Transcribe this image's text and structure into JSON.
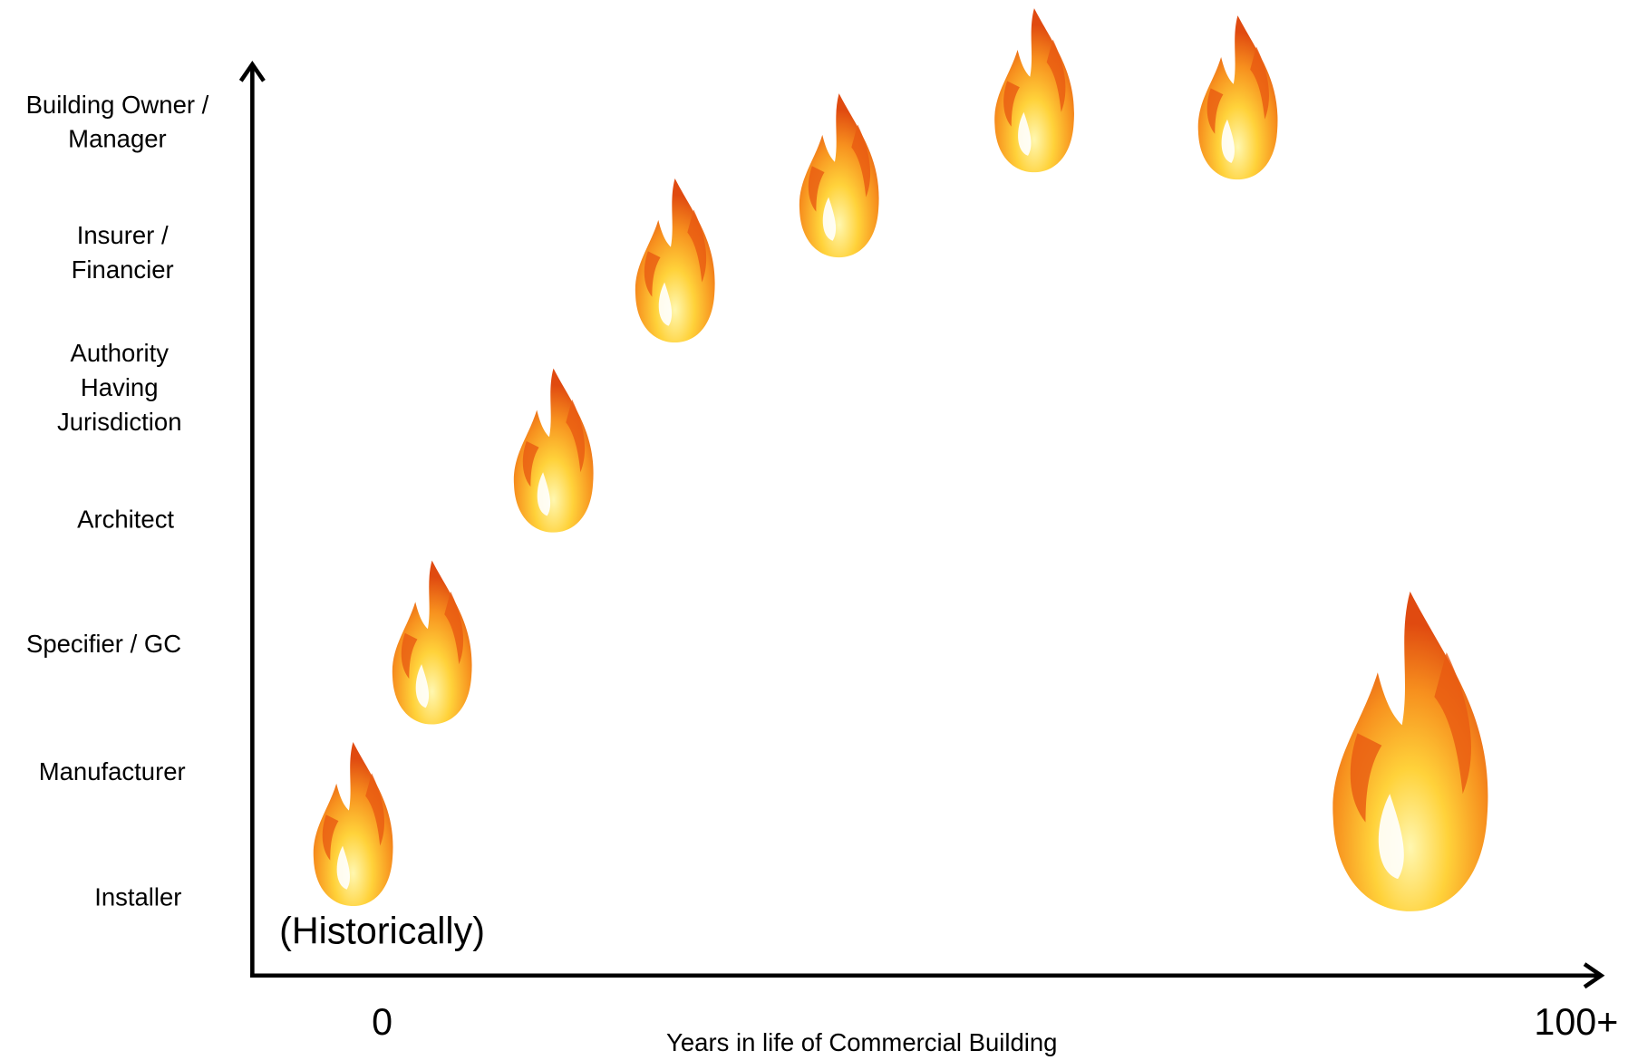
{
  "y_axis": {
    "labels": [
      "Building Owner / Manager",
      "Insurer / Financier",
      "Authority Having Jurisdiction",
      "Architect",
      "Specifier / GC",
      "Manufacturer",
      "Installer"
    ]
  },
  "annotation": "(Historically)",
  "x_axis": {
    "labels": [
      "0",
      "100+"
    ],
    "title": "Years in life of Commercial Building"
  }
}
